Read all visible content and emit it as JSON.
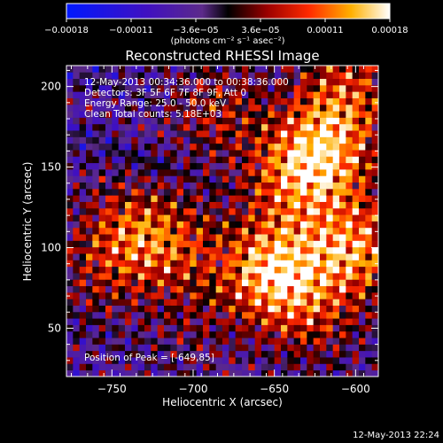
{
  "chart_data": {
    "type": "heatmap",
    "title": "Reconstructed RHESSI Image",
    "xlabel": "Heliocentric X (arcsec)",
    "ylabel": "Heliocentric Y (arcsec)",
    "xlim": [
      -778,
      -586
    ],
    "ylim": [
      20,
      213
    ],
    "xticks": [
      -750,
      -700,
      -650,
      -600
    ],
    "yticks": [
      50,
      100,
      150,
      200
    ],
    "annotations": [
      "12-May-2013 00:34:36.000 to 00:38:36.000",
      "Detectors: 3F 5F 6F 7F 8F 9F, Att 0",
      "Energy Range: 25.0 - 50.0 keV",
      "Clean     Total counts: 5.18E+03"
    ],
    "peak_label": "Position of Peak = [-649,85]",
    "colorbar": {
      "range": [
        -0.00018,
        0.00018
      ],
      "ticks": [
        "-0.00018",
        "-0.00011",
        "-3.6e-05",
        "3.6e-05",
        "0.00011",
        "0.00018"
      ],
      "unit_label": "(photons cm⁻² s⁻¹ asec⁻²)",
      "colormap": "blue-purple-red-yellow-white"
    },
    "hot_regions": [
      {
        "x": -650,
        "y": 85,
        "v": 1.0
      },
      {
        "x": -620,
        "y": 160,
        "v": 0.85
      },
      {
        "x": -600,
        "y": 100,
        "v": 0.8
      },
      {
        "x": -605,
        "y": 200,
        "v": 0.55
      },
      {
        "x": -740,
        "y": 110,
        "v": 0.55
      },
      {
        "x": -710,
        "y": 100,
        "v": 0.45
      },
      {
        "x": -685,
        "y": 185,
        "v": 0.4
      },
      {
        "x": -640,
        "y": 140,
        "v": 0.5
      },
      {
        "x": -625,
        "y": 55,
        "v": 0.35
      },
      {
        "x": -760,
        "y": 80,
        "v": 0.25
      },
      {
        "x": -700,
        "y": 50,
        "v": 0.2
      }
    ]
  },
  "footer": {
    "timestamp": "12-May-2013 22:24"
  }
}
